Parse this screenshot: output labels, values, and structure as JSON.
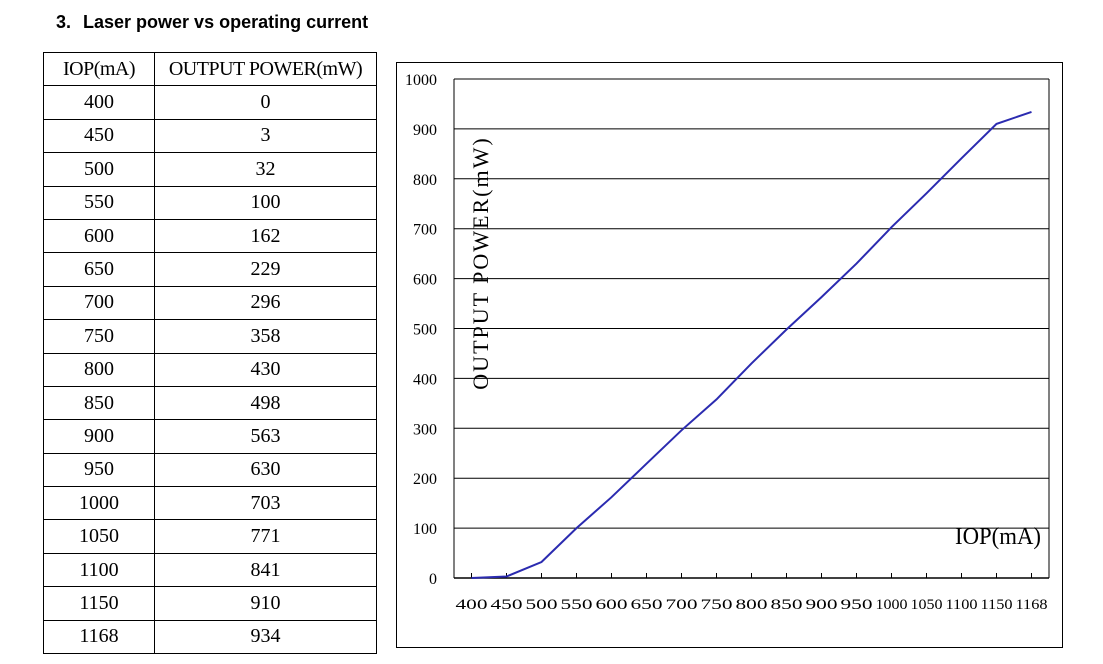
{
  "heading": {
    "number": "3.",
    "text": "Laser power vs operating current"
  },
  "table": {
    "headers": [
      "IOP(mA)",
      "OUTPUT POWER(mW)"
    ],
    "rows": [
      [
        "400",
        "0"
      ],
      [
        "450",
        "3"
      ],
      [
        "500",
        "32"
      ],
      [
        "550",
        "100"
      ],
      [
        "600",
        "162"
      ],
      [
        "650",
        "229"
      ],
      [
        "700",
        "296"
      ],
      [
        "750",
        "358"
      ],
      [
        "800",
        "430"
      ],
      [
        "850",
        "498"
      ],
      [
        "900",
        "563"
      ],
      [
        "950",
        "630"
      ],
      [
        "1000",
        "703"
      ],
      [
        "1050",
        "771"
      ],
      [
        "1100",
        "841"
      ],
      [
        "1150",
        "910"
      ],
      [
        "1168",
        "934"
      ]
    ]
  },
  "chart_data": {
    "type": "line",
    "xlabel": "IOP(mA)",
    "ylabel": "OUTPUT POWER(mW)",
    "x_ticks": [
      "400",
      "450",
      "500",
      "550",
      "600",
      "650",
      "700",
      "750",
      "800",
      "850",
      "900",
      "950",
      "1000",
      "1050",
      "1100",
      "1150",
      "1168"
    ],
    "y_ticks": [
      0,
      100,
      200,
      300,
      400,
      500,
      600,
      700,
      800,
      900,
      1000
    ],
    "ylim": [
      0,
      1000
    ],
    "grid": "horizontal",
    "line_color": "#2b2bb0",
    "x": [
      400,
      450,
      500,
      550,
      600,
      650,
      700,
      750,
      800,
      850,
      900,
      950,
      1000,
      1050,
      1100,
      1150,
      1168
    ],
    "y": [
      0,
      3,
      32,
      100,
      162,
      229,
      296,
      358,
      430,
      498,
      563,
      630,
      703,
      771,
      841,
      910,
      934
    ]
  }
}
